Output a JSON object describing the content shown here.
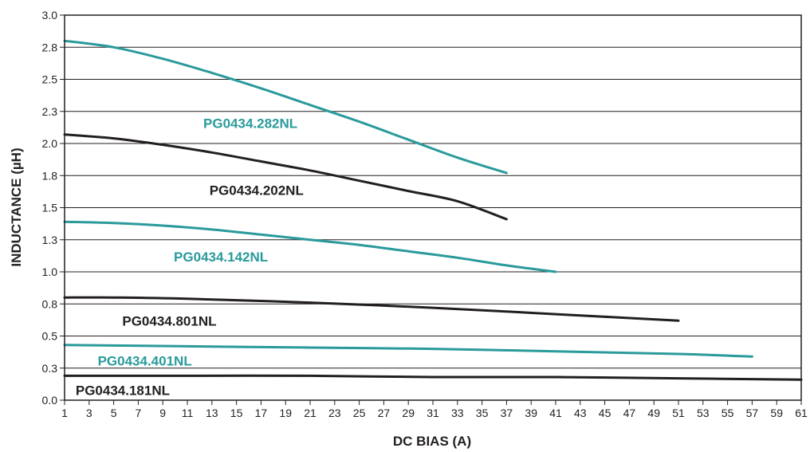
{
  "chart_data": {
    "type": "line",
    "title": "",
    "xlabel": "DC BIAS (A)",
    "ylabel": "INDUCTANCE (µH)",
    "xlim": [
      1,
      61
    ],
    "ylim": [
      0,
      3.0
    ],
    "x_ticks": [
      1,
      3,
      5,
      7,
      9,
      11,
      13,
      15,
      17,
      19,
      21,
      23,
      25,
      27,
      29,
      31,
      33,
      35,
      37,
      39,
      41,
      43,
      45,
      47,
      49,
      51,
      53,
      55,
      57,
      59,
      61
    ],
    "y_ticks": [
      {
        "value": 0.0,
        "label": "0.0"
      },
      {
        "value": 0.25,
        "label": "0.3"
      },
      {
        "value": 0.5,
        "label": "0.5"
      },
      {
        "value": 0.75,
        "label": "0.8"
      },
      {
        "value": 1.0,
        "label": "1.0"
      },
      {
        "value": 1.25,
        "label": "1.3"
      },
      {
        "value": 1.5,
        "label": "1.5"
      },
      {
        "value": 1.75,
        "label": "1.8"
      },
      {
        "value": 2.0,
        "label": "2.0"
      },
      {
        "value": 2.25,
        "label": "2.3"
      },
      {
        "value": 2.5,
        "label": "2.5"
      },
      {
        "value": 2.75,
        "label": "2.8"
      },
      {
        "value": 3.0,
        "label": "3.0"
      }
    ],
    "grid": "horizontal",
    "colors": {
      "teal": "#2a9a9b",
      "black": "#231f20"
    },
    "series": [
      {
        "name": "PG0434.282NL",
        "color": "#2a9a9b",
        "x": [
          1,
          5,
          9,
          13,
          17,
          21,
          25,
          29,
          33,
          37
        ],
        "y": [
          2.8,
          2.75,
          2.66,
          2.55,
          2.43,
          2.3,
          2.17,
          2.03,
          1.89,
          1.77
        ]
      },
      {
        "name": "PG0434.202NL",
        "color": "#231f20",
        "x": [
          1,
          5,
          9,
          13,
          17,
          21,
          25,
          29,
          33,
          37
        ],
        "y": [
          2.07,
          2.04,
          1.99,
          1.93,
          1.86,
          1.79,
          1.71,
          1.63,
          1.55,
          1.41
        ]
      },
      {
        "name": "PG0434.142NL",
        "color": "#2a9a9b",
        "x": [
          1,
          5,
          9,
          13,
          17,
          21,
          25,
          29,
          33,
          37,
          41
        ],
        "y": [
          1.39,
          1.38,
          1.36,
          1.33,
          1.29,
          1.25,
          1.21,
          1.16,
          1.11,
          1.05,
          1.0
        ]
      },
      {
        "name": "PG0434.801NL",
        "color": "#231f20",
        "x": [
          1,
          5,
          11,
          21,
          31,
          41,
          51
        ],
        "y": [
          0.8,
          0.8,
          0.79,
          0.76,
          0.72,
          0.67,
          0.62
        ]
      },
      {
        "name": "PG0434.401NL",
        "color": "#2a9a9b",
        "x": [
          1,
          11,
          21,
          31,
          41,
          51,
          57
        ],
        "y": [
          0.43,
          0.42,
          0.41,
          0.4,
          0.38,
          0.36,
          0.34
        ]
      },
      {
        "name": "PG0434.181NL",
        "color": "#231f20",
        "x": [
          1,
          11,
          21,
          31,
          41,
          51,
          61
        ],
        "y": [
          0.19,
          0.19,
          0.19,
          0.18,
          0.18,
          0.17,
          0.16
        ]
      }
    ],
    "annotations": [
      {
        "text": "PG0434.282NL",
        "x": 12.3,
        "y": 2.12,
        "color": "#2a9a9b"
      },
      {
        "text": "PG0434.202NL",
        "x": 12.8,
        "y": 1.6,
        "color": "#231f20"
      },
      {
        "text": "PG0434.142NL",
        "x": 9.9,
        "y": 1.08,
        "color": "#2a9a9b"
      },
      {
        "text": "PG0434.801NL",
        "x": 5.7,
        "y": 0.58,
        "color": "#231f20"
      },
      {
        "text": "PG0434.401NL",
        "x": 3.7,
        "y": 0.27,
        "color": "#2a9a9b"
      },
      {
        "text": "PG0434.181NL",
        "x": 1.9,
        "y": 0.04,
        "color": "#231f20"
      }
    ]
  }
}
